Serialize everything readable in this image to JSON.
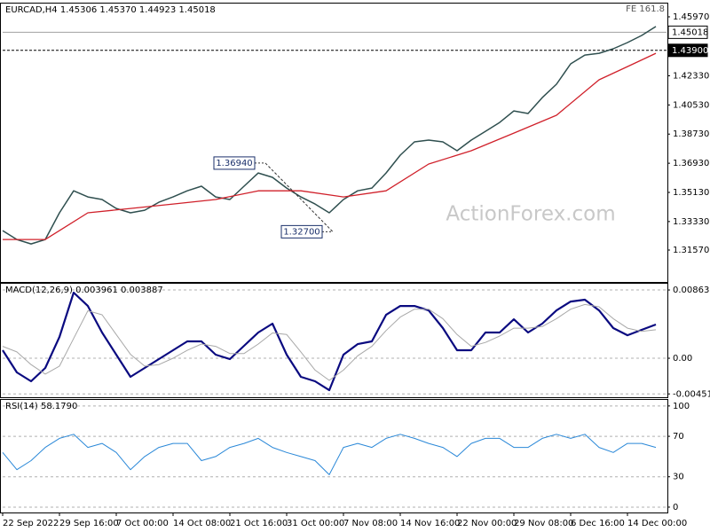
{
  "chart_data": [
    {
      "type": "line",
      "title": "EURCAD,H4  1.45306 1.45370 1.44923 1.45018",
      "fe_label": "FE 161.8",
      "watermark": "ActionForex.com",
      "xlim": [
        0,
        374
      ],
      "ylim": [
        1.296,
        1.4679
      ],
      "yticks": [
        {
          "value": 1.4597,
          "label": "1.45970"
        },
        {
          "value": 1.4233,
          "label": "1.42330"
        },
        {
          "value": 1.4053,
          "label": "1.40530"
        },
        {
          "value": 1.3873,
          "label": "1.38730"
        },
        {
          "value": 1.3693,
          "label": "1.36930"
        },
        {
          "value": 1.3513,
          "label": "1.35130"
        },
        {
          "value": 1.3333,
          "label": "1.33330"
        },
        {
          "value": 1.3157,
          "label": "1.31570"
        }
      ],
      "price_lines": [
        {
          "value": 1.45018,
          "label": "1.45018",
          "dashed": false,
          "fill": "#ffffff",
          "text_color": "#000000"
        },
        {
          "value": 1.439,
          "label": "1.43900",
          "dashed": true,
          "fill": "#000000",
          "text_color": "#ffffff"
        }
      ],
      "annotations": [
        {
          "x": 148,
          "value": 1.3694,
          "label": "1.36940"
        },
        {
          "x": 186,
          "value": 1.327,
          "label": "1.32700"
        }
      ],
      "series": [
        {
          "color": "#2f4f4f",
          "width": 1.5,
          "x": [
            0,
            8,
            16,
            24,
            32,
            40,
            48,
            56,
            64,
            72,
            80,
            88,
            96,
            104,
            112,
            120,
            128,
            136,
            144,
            152,
            160,
            168,
            176,
            184,
            192,
            200,
            208,
            216,
            224,
            232,
            240,
            248,
            256,
            264,
            272,
            280,
            288,
            296,
            304,
            312,
            320,
            328,
            336,
            344,
            352,
            360,
            368
          ],
          "values": [
            1.3277,
            1.3222,
            1.3195,
            1.3222,
            1.3387,
            1.3523,
            1.3485,
            1.3469,
            1.3414,
            1.3387,
            1.3403,
            1.3452,
            1.3485,
            1.3523,
            1.3551,
            1.3485,
            1.3469,
            1.3551,
            1.3633,
            1.3606,
            1.354,
            1.3485,
            1.3441,
            1.3387,
            1.3469,
            1.3523,
            1.354,
            1.3633,
            1.3743,
            1.3825,
            1.3836,
            1.3825,
            1.377,
            1.3836,
            1.389,
            1.3945,
            1.4016,
            1.4,
            1.4098,
            1.4181,
            1.4307,
            1.4361,
            1.4372,
            1.44,
            1.4438,
            1.4482,
            1.4537
          ]
        },
        {
          "color": "#d0202a",
          "width": 1.3,
          "x": [
            0,
            24,
            48,
            72,
            96,
            120,
            144,
            168,
            192,
            216,
            240,
            264,
            288,
            312,
            336,
            352,
            368
          ],
          "values": [
            1.3222,
            1.3222,
            1.3387,
            1.3414,
            1.3441,
            1.3469,
            1.3523,
            1.3523,
            1.3485,
            1.3523,
            1.3688,
            1.377,
            1.3879,
            1.3989,
            1.4208,
            1.429,
            1.4372
          ]
        }
      ]
    },
    {
      "type": "line",
      "title": "MACD(12,26,9) 0.003961 0.003887",
      "xlim": [
        0,
        374
      ],
      "ylim": [
        -0.00493,
        0.00942
      ],
      "grid": true,
      "yticks": [
        0.008631,
        {
          "value": 0,
          "label": "0.00"
        },
        -0.004511
      ],
      "series": [
        {
          "color": "#0a0a80",
          "width": 2.2,
          "x": [
            0,
            8,
            16,
            24,
            32,
            40,
            48,
            56,
            64,
            72,
            80,
            88,
            96,
            104,
            112,
            120,
            128,
            136,
            144,
            152,
            160,
            168,
            176,
            184,
            192,
            200,
            208,
            216,
            224,
            232,
            240,
            248,
            256,
            264,
            272,
            280,
            288,
            296,
            304,
            312,
            320,
            328,
            336,
            344,
            352,
            360,
            368
          ],
          "values": [
            0.00101,
            -0.00179,
            -0.00291,
            -0.00123,
            0.00269,
            0.0083,
            0.00661,
            0.00325,
            0.00045,
            -0.00235,
            -0.00123,
            -0.00011,
            0.00101,
            0.00213,
            0.00213,
            0.00045,
            -0.00011,
            0.00157,
            0.00325,
            0.00437,
            0.00045,
            -0.00235,
            -0.00291,
            -0.00404,
            0.00045,
            0.00179,
            0.00213,
            0.00549,
            0.00661,
            0.00661,
            0.00605,
            0.00381,
            0.00101,
            0.00101,
            0.00325,
            0.00325,
            0.00493,
            0.00325,
            0.00437,
            0.00605,
            0.00717,
            0.0074,
            0.00605,
            0.00381,
            0.00291,
            0.00359,
            0.00426
          ]
        },
        {
          "color": "#a8a8a8",
          "width": 1,
          "x": [
            0,
            8,
            16,
            24,
            32,
            40,
            48,
            56,
            64,
            72,
            80,
            88,
            96,
            104,
            112,
            120,
            128,
            136,
            144,
            152,
            160,
            168,
            176,
            184,
            192,
            200,
            208,
            216,
            224,
            232,
            240,
            248,
            256,
            264,
            272,
            280,
            288,
            296,
            304,
            312,
            320,
            328,
            336,
            344,
            352,
            360,
            368
          ],
          "values": [
            0.0015,
            0.0008,
            -0.0008,
            -0.002,
            -0.001,
            0.0025,
            0.006,
            0.0055,
            0.003,
            0.0005,
            -0.001,
            -0.0008,
            0,
            0.001,
            0.0018,
            0.0015,
            0.0006,
            0.0006,
            0.0018,
            0.0032,
            0.003,
            0.0008,
            -0.0015,
            -0.0028,
            -0.0015,
            0.0003,
            0.0015,
            0.0035,
            0.0052,
            0.0062,
            0.0062,
            0.005,
            0.003,
            0.0015,
            0.002,
            0.0028,
            0.0038,
            0.0038,
            0.004,
            0.005,
            0.0062,
            0.0068,
            0.0065,
            0.005,
            0.0038,
            0.0034,
            0.0036
          ]
        }
      ]
    },
    {
      "type": "line",
      "title": "RSI(14) 58.1790",
      "xlim": [
        0,
        374
      ],
      "ylim": [
        -5.3,
        106
      ],
      "grid": true,
      "yticks": [
        100,
        70,
        30,
        0
      ],
      "xticks": [
        {
          "value": 0,
          "label": "22 Sep 2022"
        },
        {
          "value": 32,
          "label": "29 Sep 16:00"
        },
        {
          "value": 64,
          "label": "7 Oct 00:00"
        },
        {
          "value": 96,
          "label": "14 Oct 08:00"
        },
        {
          "value": 128,
          "label": "21 Oct 16:00"
        },
        {
          "value": 160,
          "label": "31 Oct 00:00"
        },
        {
          "value": 192,
          "label": "7 Nov 08:00"
        },
        {
          "value": 224,
          "label": "14 Nov 16:00"
        },
        {
          "value": 256,
          "label": "22 Nov 00:00"
        },
        {
          "value": 288,
          "label": "29 Nov 08:00"
        },
        {
          "value": 320,
          "label": "6 Dec 16:00"
        },
        {
          "value": 352,
          "label": "14 Dec 00:00"
        }
      ],
      "series": [
        {
          "color": "#2a88d8",
          "width": 1,
          "x": [
            0,
            8,
            16,
            24,
            32,
            40,
            48,
            56,
            64,
            72,
            80,
            88,
            96,
            104,
            112,
            120,
            128,
            136,
            144,
            152,
            160,
            168,
            176,
            184,
            192,
            200,
            208,
            216,
            224,
            232,
            240,
            248,
            256,
            264,
            272,
            280,
            288,
            296,
            304,
            312,
            320,
            328,
            336,
            344,
            352,
            360,
            368
          ],
          "values": [
            54,
            37,
            46,
            59,
            68,
            72,
            59,
            63,
            54,
            37,
            50,
            59,
            63,
            63,
            46,
            50,
            59,
            63,
            68,
            59,
            54,
            50,
            46,
            32,
            59,
            63,
            59,
            68,
            72,
            68,
            63,
            59,
            50,
            63,
            68,
            68,
            59,
            59,
            68,
            72,
            68,
            72,
            59,
            54,
            63,
            63,
            59
          ]
        }
      ]
    }
  ]
}
